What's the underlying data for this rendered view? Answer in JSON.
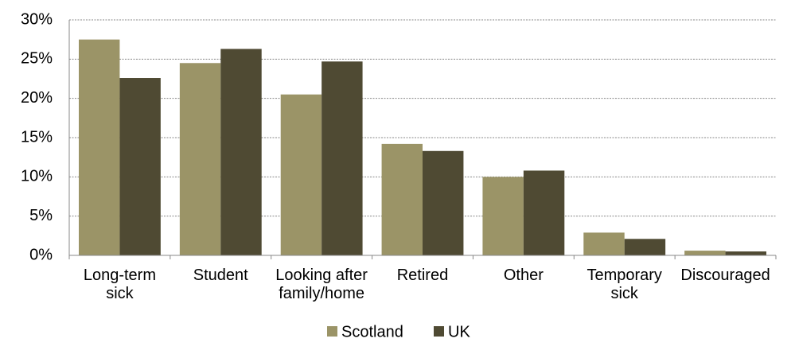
{
  "chart_data": {
    "type": "bar",
    "categories": [
      "Long-term sick",
      "Student",
      "Looking after family/home",
      "Retired",
      "Other",
      "Temporary sick",
      "Discouraged"
    ],
    "series": [
      {
        "name": "Scotland",
        "color": "#9b9467",
        "values": [
          27.5,
          24.5,
          20.5,
          14.2,
          10.0,
          2.9,
          0.6
        ]
      },
      {
        "name": "UK",
        "color": "#4f4a33",
        "values": [
          22.6,
          26.3,
          24.7,
          13.3,
          10.8,
          2.1,
          0.5
        ]
      }
    ],
    "ylim": [
      0,
      30
    ],
    "yticks": [
      {
        "value": 0,
        "label": "0%"
      },
      {
        "value": 5,
        "label": "5%"
      },
      {
        "value": 10,
        "label": "10%"
      },
      {
        "value": 15,
        "label": "15%"
      },
      {
        "value": 20,
        "label": "20%"
      },
      {
        "value": 25,
        "label": "25%"
      },
      {
        "value": 30,
        "label": "30%"
      }
    ],
    "grid": true,
    "legend": "bottom"
  }
}
